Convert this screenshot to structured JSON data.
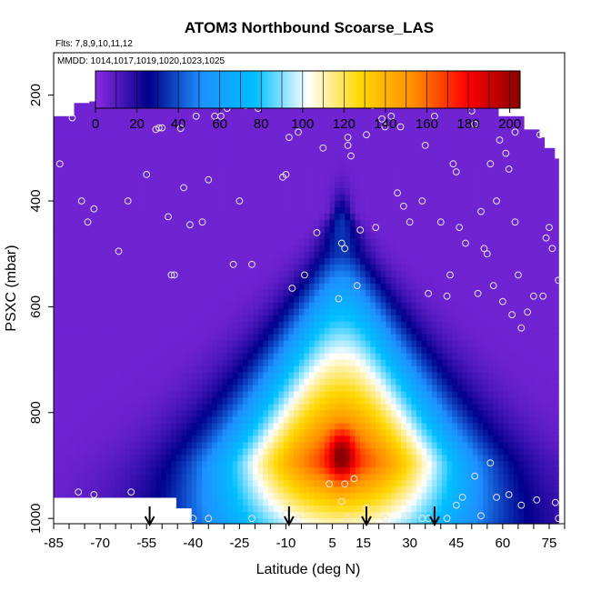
{
  "chart_data": {
    "type": "heatmap",
    "title": "ATOM3 Northbound Scoarse_LAS",
    "flights_label": "Flts: 7,8,9,10,11,12",
    "dates_label": "MMDD: 1014,1017,1019,1020,1023,1025",
    "xlabel": "Latitude (deg N)",
    "ylabel": "PSXC (mbar)",
    "xlim": [
      -85,
      80
    ],
    "ylim": [
      1010,
      120
    ],
    "x_ticks": [
      -85,
      -70,
      -55,
      -40,
      -25,
      -10,
      5,
      15,
      30,
      45,
      60,
      75
    ],
    "y_ticks": [
      200,
      400,
      600,
      800,
      1000
    ],
    "colorbar": {
      "range": [
        0,
        205
      ],
      "ticks": [
        0,
        20,
        40,
        60,
        80,
        100,
        120,
        140,
        160,
        180,
        200
      ],
      "colors": [
        "#8a2be2",
        "#00008b",
        "#1e90ff",
        "#00bfff",
        "#ffffff",
        "#ffd700",
        "#ff8c00",
        "#ff0000",
        "#8b0000"
      ]
    },
    "arrows_lat": [
      -54,
      -9,
      16,
      38
    ],
    "field": {
      "background_value": 5,
      "peak_lat": 8,
      "peak_pressure": 880,
      "peak_value": 165,
      "top_pressure_by_lat": [
        [
          -81,
          240
        ],
        [
          -78,
          215
        ],
        [
          -73,
          212
        ],
        [
          -70,
          165
        ],
        [
          -60,
          165
        ],
        [
          -50,
          165
        ],
        [
          -40,
          165
        ],
        [
          -20,
          165
        ],
        [
          0,
          165
        ],
        [
          20,
          165
        ],
        [
          40,
          165
        ],
        [
          50,
          165
        ],
        [
          52,
          210
        ],
        [
          59,
          240
        ],
        [
          66,
          265
        ],
        [
          71,
          280
        ],
        [
          74,
          300
        ],
        [
          77,
          320
        ]
      ],
      "bottom_pressure_by_lat": [
        [
          -81,
          960
        ],
        [
          -45,
          980
        ],
        [
          -40,
          1010
        ],
        [
          77,
          1010
        ]
      ]
    },
    "observations": [
      [
        -83,
        330
      ],
      [
        -79,
        243
      ],
      [
        -76,
        400
      ],
      [
        -74,
        440
      ],
      [
        -72,
        415
      ],
      [
        -70,
        212
      ],
      [
        -68,
        210
      ],
      [
        -64,
        495
      ],
      [
        -61,
        400
      ],
      [
        -57,
        185
      ],
      [
        -55,
        350
      ],
      [
        -52,
        265
      ],
      [
        -51,
        262
      ],
      [
        -50,
        262
      ],
      [
        -48,
        430
      ],
      [
        -46,
        540
      ],
      [
        -44,
        263
      ],
      [
        -43,
        375
      ],
      [
        -41,
        445
      ],
      [
        -39,
        240
      ],
      [
        -37,
        440
      ],
      [
        -35,
        360
      ],
      [
        -33,
        240
      ],
      [
        -31,
        240
      ],
      [
        -29,
        225
      ],
      [
        -27,
        520
      ],
      [
        -25,
        400
      ],
      [
        -23,
        220
      ],
      [
        -21,
        520
      ],
      [
        -19,
        225
      ],
      [
        -17,
        205
      ],
      [
        -15,
        200
      ],
      [
        -13,
        190
      ],
      [
        -11,
        355
      ],
      [
        -10,
        350
      ],
      [
        -9,
        280
      ],
      [
        -8,
        565
      ],
      [
        -6,
        270
      ],
      [
        -4,
        540
      ],
      [
        -2,
        215
      ],
      [
        0,
        460
      ],
      [
        2,
        300
      ],
      [
        5,
        210
      ],
      [
        7,
        585
      ],
      [
        8,
        480
      ],
      [
        9,
        490
      ],
      [
        10,
        280
      ],
      [
        10,
        295
      ],
      [
        11,
        315
      ],
      [
        12,
        195
      ],
      [
        13,
        560
      ],
      [
        14,
        455
      ],
      [
        16,
        275
      ],
      [
        18,
        220
      ],
      [
        19,
        450
      ],
      [
        21,
        245
      ],
      [
        22,
        260
      ],
      [
        24,
        240
      ],
      [
        26,
        385
      ],
      [
        27,
        260
      ],
      [
        28,
        410
      ],
      [
        30,
        440
      ],
      [
        32,
        210
      ],
      [
        34,
        400
      ],
      [
        35,
        295
      ],
      [
        36,
        575
      ],
      [
        38,
        240
      ],
      [
        40,
        440
      ],
      [
        42,
        580
      ],
      [
        43,
        540
      ],
      [
        44,
        330
      ],
      [
        45,
        345
      ],
      [
        46,
        450
      ],
      [
        48,
        480
      ],
      [
        50,
        230
      ],
      [
        51,
        255
      ],
      [
        52,
        575
      ],
      [
        53,
        420
      ],
      [
        54,
        490
      ],
      [
        55,
        500
      ],
      [
        56,
        330
      ],
      [
        57,
        560
      ],
      [
        58,
        400
      ],
      [
        59,
        285
      ],
      [
        60,
        590
      ],
      [
        61,
        310
      ],
      [
        62,
        340
      ],
      [
        63,
        615
      ],
      [
        64,
        270
      ],
      [
        64,
        440
      ],
      [
        65,
        540
      ],
      [
        66,
        640
      ],
      [
        68,
        610
      ],
      [
        70,
        580
      ],
      [
        72,
        275
      ],
      [
        73,
        580
      ],
      [
        74,
        470
      ],
      [
        75,
        450
      ],
      [
        76,
        490
      ],
      [
        78,
        550
      ],
      [
        -47,
        540
      ],
      [
        -60,
        950
      ],
      [
        -72,
        955
      ],
      [
        -77,
        950
      ],
      [
        -40,
        1000
      ],
      [
        -35,
        1000
      ],
      [
        -21,
        1000
      ],
      [
        -10,
        990
      ],
      [
        -6,
        1000
      ],
      [
        4,
        935
      ],
      [
        8,
        968
      ],
      [
        9,
        935
      ],
      [
        10,
        1000
      ],
      [
        12,
        925
      ],
      [
        14,
        1000
      ],
      [
        16,
        980
      ],
      [
        22,
        1000
      ],
      [
        29,
        995
      ],
      [
        36,
        1000
      ],
      [
        42,
        1000
      ],
      [
        47,
        960
      ],
      [
        53,
        995
      ],
      [
        56,
        895
      ],
      [
        58,
        960
      ],
      [
        62,
        955
      ],
      [
        66,
        975
      ],
      [
        71,
        965
      ],
      [
        77,
        970
      ],
      [
        78,
        1000
      ],
      [
        51,
        920
      ],
      [
        45,
        975
      ],
      [
        34,
        1000
      ]
    ]
  }
}
